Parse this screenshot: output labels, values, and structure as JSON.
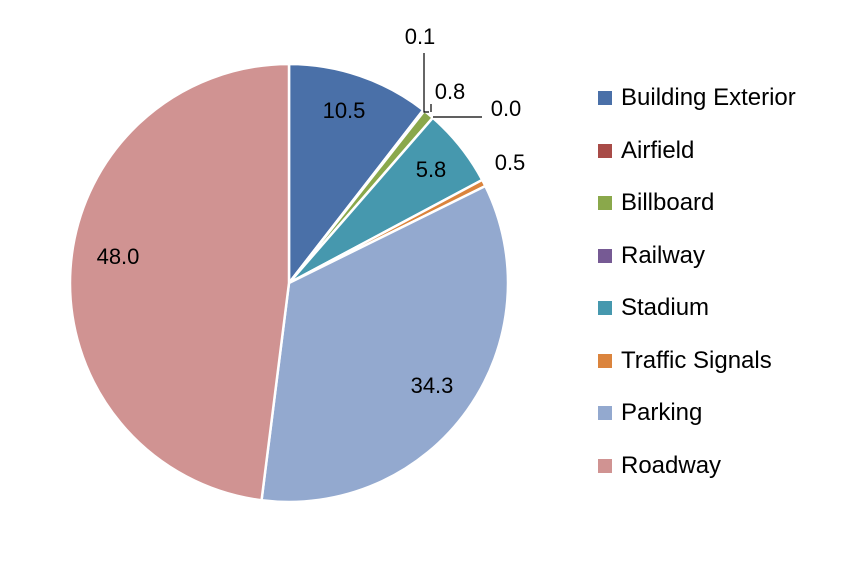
{
  "chart_data": {
    "type": "pie",
    "title": "",
    "legend_position": "right",
    "categories": [
      "Building Exterior",
      "Airfield",
      "Billboard",
      "Railway",
      "Stadium",
      "Traffic Signals",
      "Parking",
      "Roadway"
    ],
    "values": [
      10.5,
      0.1,
      0.8,
      0.0,
      5.8,
      0.5,
      34.3,
      48.0
    ],
    "data_labels": [
      "10.5",
      "0.1",
      "0.8",
      "0.0",
      "5.8",
      "0.5",
      "34.3",
      "48.0"
    ],
    "colors": [
      "#4A70A8",
      "#A84B47",
      "#8AA84B",
      "#765A94",
      "#4698AE",
      "#DB843D",
      "#93A9CF",
      "#D09392"
    ]
  }
}
